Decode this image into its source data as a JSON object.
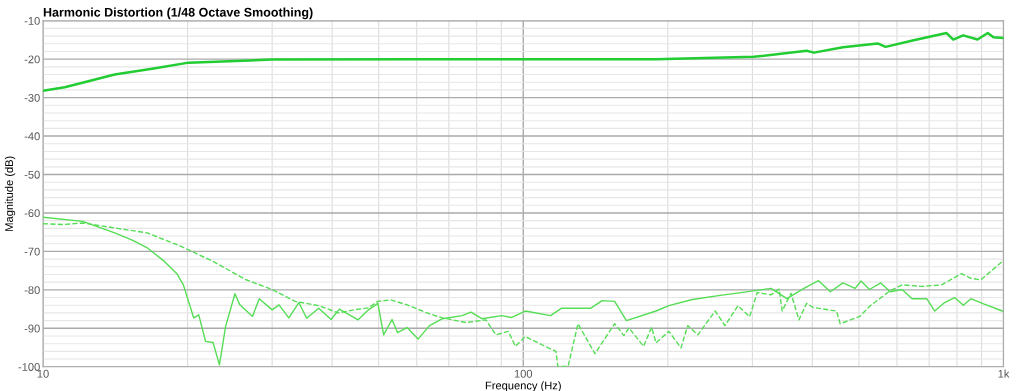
{
  "chart_data": {
    "type": "line",
    "title": "Harmonic Distortion (1/48 Octave Smoothing)",
    "xlabel": "Frequency (Hz)",
    "ylabel": "Magnitude (dB)",
    "log": "x",
    "grid": true,
    "marker": "none",
    "xlim": [
      10,
      1000
    ],
    "xticks": [
      10,
      100,
      {
        "value": 1000,
        "label": "1k"
      }
    ],
    "ylim": [
      -100,
      -10
    ],
    "yticks": [
      -100,
      -90,
      -80,
      -70,
      -60,
      -50,
      -40,
      -30,
      -20,
      -10
    ],
    "series": [
      {
        "color": "#22cc33",
        "line_style": "solid",
        "x": [
          10.0,
          11.1,
          14.1,
          17.0,
          20.1,
          30.0,
          58,
          100,
          189,
          302,
          389,
          403,
          463,
          547,
          568,
          650,
          761,
          786,
          824,
          883,
          927,
          953,
          1000
        ],
        "values": [
          -28.2,
          -27.3,
          -24.0,
          -22.4,
          -20.9,
          -20.1,
          -20.0,
          -20.0,
          -20.0,
          -19.4,
          -17.8,
          -18.3,
          -16.9,
          -15.9,
          -16.8,
          -15.1,
          -13.2,
          -14.9,
          -13.8,
          -14.9,
          -13.2,
          -14.3,
          -14.5
        ]
      },
      {
        "color": "#55dd55",
        "line_style": "solid",
        "x": [
          10.0,
          12.1,
          14.1,
          15.3,
          16.5,
          17.9,
          19.0,
          19.6,
          20.6,
          21.1,
          21.8,
          22.6,
          23.3,
          24.0,
          25.1,
          25.7,
          27.3,
          28.2,
          30.0,
          31.0,
          32.5,
          34.1,
          35.4,
          37.5,
          39.8,
          41.4,
          45.3,
          47.6,
          49.8,
          51.2,
          53.3,
          54.7,
          57.3,
          60.4,
          63.8,
          67.9,
          74.6,
          77.8,
          82.0,
          90.2,
          94.4,
          101,
          114,
          120,
          138,
          146,
          155,
          164,
          189,
          201,
          225,
          255,
          289,
          328,
          354,
          384,
          412,
          436,
          463,
          491,
          505,
          526,
          555,
          581,
          615,
          645,
          692,
          719,
          754,
          791,
          825,
          855,
          906,
          995
        ],
        "values": [
          -61.1,
          -62.2,
          -65.2,
          -67.0,
          -69.1,
          -72.6,
          -75.8,
          -78.7,
          -87.3,
          -86.5,
          -93.4,
          -93.7,
          -99.5,
          -89.5,
          -81.0,
          -83.9,
          -86.9,
          -82.3,
          -85.2,
          -83.9,
          -87.3,
          -83.3,
          -87.4,
          -84.8,
          -87.7,
          -85.0,
          -87.8,
          -85.2,
          -83.5,
          -91.7,
          -87.7,
          -91.1,
          -89.8,
          -92.8,
          -89.3,
          -87.5,
          -86.7,
          -85.8,
          -87.5,
          -86.7,
          -87.2,
          -85.5,
          -86.7,
          -84.8,
          -84.8,
          -82.8,
          -83.0,
          -88.0,
          -85.5,
          -84.1,
          -82.5,
          -81.5,
          -80.6,
          -79.6,
          -82.3,
          -79.6,
          -77.6,
          -80.5,
          -78.2,
          -79.6,
          -77.7,
          -79.9,
          -78.2,
          -80.5,
          -79.9,
          -82.3,
          -82.3,
          -85.5,
          -83.3,
          -82.0,
          -84.0,
          -82.3,
          -83.6,
          -85.5
        ]
      },
      {
        "color": "#55dd55",
        "line_style": "dashed",
        "x": [
          10.0,
          11.0,
          12.1,
          14.1,
          16.5,
          19.4,
          22.6,
          26.4,
          30.0,
          33.5,
          37.5,
          41.2,
          44.4,
          47.5,
          49.8,
          52.9,
          57.3,
          63.0,
          67.9,
          76.0,
          83.6,
          87.7,
          93.1,
          96.3,
          101,
          111,
          117,
          118,
          124,
          130,
          141,
          155,
          162,
          166,
          178,
          185,
          189,
          201,
          213,
          220,
          231,
          251,
          263,
          280,
          296,
          307,
          328,
          341,
          346,
          361,
          375,
          389,
          402,
          449,
          457,
          502,
          526,
          578,
          615,
          676,
          743,
          817,
          855,
          897,
          995
        ],
        "values": [
          -62.8,
          -63.0,
          -62.6,
          -63.9,
          -65.2,
          -68.7,
          -72.6,
          -77.3,
          -79.9,
          -83.0,
          -84.1,
          -86.0,
          -85.2,
          -84.7,
          -83.0,
          -82.6,
          -83.9,
          -86.0,
          -87.3,
          -88.5,
          -87.8,
          -91.7,
          -90.8,
          -94.7,
          -92.1,
          -94.7,
          -96.0,
          -99.9,
          -99.9,
          -88.8,
          -96.6,
          -88.8,
          -91.9,
          -89.9,
          -94.7,
          -89.7,
          -93.8,
          -90.8,
          -95.1,
          -89.3,
          -91.7,
          -85.5,
          -89.3,
          -84.1,
          -87.0,
          -80.7,
          -81.3,
          -79.8,
          -85.5,
          -80.9,
          -87.8,
          -83.5,
          -84.6,
          -85.5,
          -88.8,
          -86.9,
          -84.3,
          -80.4,
          -78.7,
          -79.1,
          -78.7,
          -75.8,
          -77.0,
          -77.4,
          -72.6
        ]
      }
    ]
  }
}
